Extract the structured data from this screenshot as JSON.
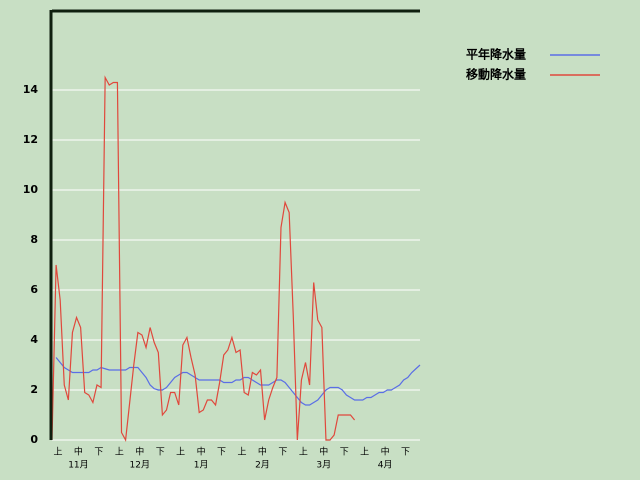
{
  "chart_data": {
    "type": "line",
    "categories": [
      "上",
      null,
      null,
      null,
      null,
      "中",
      null,
      null,
      null,
      null,
      "下",
      null,
      null,
      null,
      null,
      "上",
      null,
      null,
      null,
      null,
      "中",
      null,
      null,
      null,
      null,
      "下",
      null,
      null,
      null,
      null,
      "上",
      null,
      null,
      null,
      null,
      "中",
      null,
      null,
      null,
      null,
      "下",
      null,
      null,
      null,
      null,
      "上",
      null,
      null,
      null,
      null,
      "中",
      null,
      null,
      null,
      null,
      "下",
      null,
      null,
      null,
      null,
      "上",
      null,
      null,
      null,
      null,
      "中",
      null,
      null,
      null,
      null,
      "下",
      null,
      null,
      null,
      null,
      "上",
      null,
      null,
      null,
      null,
      "中",
      null,
      null,
      null,
      null,
      "下",
      null,
      null,
      null,
      null,
      null
    ],
    "month_labels": [
      "11月",
      "12月",
      "1月",
      "2月",
      "3月",
      "4月"
    ],
    "series": [
      {
        "name": "平年降水量",
        "color": "#5a6ee6",
        "values": [
          null,
          3.3,
          3.1,
          2.9,
          2.8,
          2.7,
          2.7,
          2.7,
          2.7,
          2.7,
          2.8,
          2.8,
          2.9,
          2.85,
          2.8,
          2.8,
          2.8,
          2.8,
          2.8,
          2.9,
          2.9,
          2.9,
          2.7,
          2.5,
          2.2,
          2.05,
          2.0,
          2.0,
          2.1,
          2.3,
          2.5,
          2.6,
          2.7,
          2.7,
          2.6,
          2.5,
          2.4,
          2.4,
          2.4,
          2.4,
          2.4,
          2.4,
          2.3,
          2.3,
          2.3,
          2.4,
          2.4,
          2.5,
          2.5,
          2.4,
          2.3,
          2.2,
          2.2,
          2.2,
          2.3,
          2.4,
          2.4,
          2.3,
          2.1,
          1.9,
          1.7,
          1.5,
          1.4,
          1.4,
          1.5,
          1.6,
          1.8,
          2.0,
          2.1,
          2.1,
          2.1,
          2.0,
          1.8,
          1.7,
          1.6,
          1.6,
          1.6,
          1.7,
          1.7,
          1.8,
          1.9,
          1.9,
          2.0,
          2.0,
          2.1,
          2.2,
          2.4,
          2.5,
          2.7,
          2.85,
          3.0
        ]
      },
      {
        "name": "移動降水量",
        "color": "#e0483c",
        "values": [
          0,
          7.0,
          5.6,
          2.2,
          1.6,
          4.3,
          4.9,
          4.5,
          1.9,
          1.8,
          1.5,
          2.2,
          2.1,
          14.5,
          14.2,
          14.3,
          14.3,
          0.3,
          0,
          1.5,
          3.0,
          4.3,
          4.2,
          3.7,
          4.5,
          3.9,
          3.5,
          1.0,
          1.2,
          1.9,
          1.9,
          1.4,
          3.8,
          4.1,
          3.3,
          2.6,
          1.1,
          1.2,
          1.6,
          1.6,
          1.4,
          2.3,
          3.4,
          3.6,
          4.1,
          3.5,
          3.6,
          1.9,
          1.8,
          2.7,
          2.6,
          2.8,
          0.8,
          1.6,
          2.1,
          2.5,
          8.5,
          9.5,
          9.1,
          5.0,
          0,
          2.4,
          3.1,
          2.2,
          6.3,
          4.8,
          4.5,
          0,
          0,
          0.2,
          1.0,
          1.0,
          1.0,
          1.0,
          0.8,
          null,
          null,
          null,
          null,
          null,
          null,
          null,
          null,
          null,
          null,
          null,
          null,
          null,
          null,
          null,
          null
        ]
      }
    ],
    "ylim": [
      0,
      17.2
    ],
    "yticks": [
      0,
      2,
      4,
      6,
      8,
      10,
      12,
      14
    ],
    "grid": true,
    "legend": "right"
  }
}
